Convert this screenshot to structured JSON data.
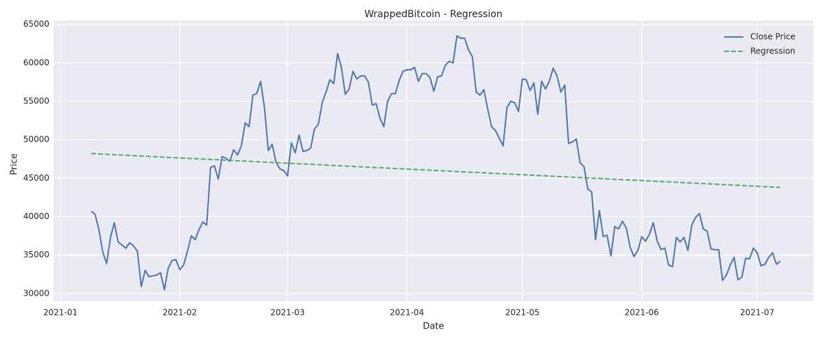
{
  "chart_data": {
    "type": "line",
    "title": "WrappedBitcoin - Regression",
    "x_label": "Date",
    "y_label": "Price",
    "xlim": [
      -9.8,
      187.6
    ],
    "xticks": [
      {
        "value": -8,
        "label": "2021-01"
      },
      {
        "value": 23,
        "label": "2021-02"
      },
      {
        "value": 51,
        "label": "2021-03"
      },
      {
        "value": 82,
        "label": "2021-04"
      },
      {
        "value": 112,
        "label": "2021-05"
      },
      {
        "value": 143,
        "label": "2021-06"
      },
      {
        "value": 173,
        "label": "2021-07"
      }
    ],
    "ylim": [
      29000,
      65500
    ],
    "yticks": [
      30000,
      35000,
      40000,
      45000,
      50000,
      55000,
      60000,
      65000
    ],
    "grid": true,
    "legend": "upper right",
    "series": [
      {
        "name": "Close Price",
        "color": "#4c72b0",
        "linestyle": "solid",
        "values": [
          40700,
          40300,
          38300,
          35400,
          33900,
          37300,
          39200,
          36700,
          36300,
          35900,
          36600,
          36200,
          35500,
          30900,
          33000,
          32200,
          32300,
          32400,
          32700,
          30500,
          33300,
          34300,
          34400,
          33100,
          33700,
          35500,
          37500,
          37000,
          38300,
          39300,
          38900,
          46400,
          46600,
          44900,
          47800,
          47600,
          47200,
          48700,
          48000,
          49200,
          52200,
          51700,
          55800,
          56000,
          57600,
          54200,
          48600,
          49400,
          47100,
          46200,
          46000,
          45300,
          49600,
          48300,
          50600,
          48500,
          48600,
          48900,
          51400,
          52000,
          54800,
          56200,
          57800,
          57300,
          61200,
          59400,
          55900,
          56600,
          58900,
          57900,
          58300,
          58300,
          57500,
          54500,
          54700,
          52800,
          51700,
          55000,
          56000,
          56000,
          57700,
          58900,
          59100,
          59100,
          59400,
          57600,
          58600,
          58600,
          58100,
          56300,
          58200,
          58300,
          59700,
          60200,
          60000,
          63500,
          63200,
          63200,
          61700,
          60800,
          56200,
          55800,
          56500,
          54000,
          51700,
          51200,
          50200,
          49200,
          54200,
          55000,
          54800,
          53700,
          57900,
          57800,
          56400,
          57400,
          53300,
          57600,
          56600,
          57600,
          59300,
          58300,
          56200,
          57100,
          49500,
          49700,
          50100,
          47000,
          46500,
          43600,
          43200,
          37000,
          40800,
          37400,
          37600,
          34900,
          38700,
          38400,
          39400,
          38500,
          36000,
          34800,
          35600,
          37400,
          36800,
          37700,
          39200,
          36900,
          35700,
          35900,
          33700,
          33500,
          37300,
          36700,
          37300,
          35600,
          38900,
          39900,
          40400,
          38400,
          38100,
          35800,
          35700,
          35700,
          31700,
          32400,
          33700,
          34700,
          31800,
          32100,
          34600,
          34500,
          35900,
          35300,
          33600,
          33800,
          34700,
          35300,
          33800,
          34200
        ]
      },
      {
        "name": "Regression",
        "color": "#55a868",
        "linestyle": "dashed",
        "x": [
          0,
          179
        ],
        "values": [
          48200,
          43800
        ]
      }
    ]
  }
}
